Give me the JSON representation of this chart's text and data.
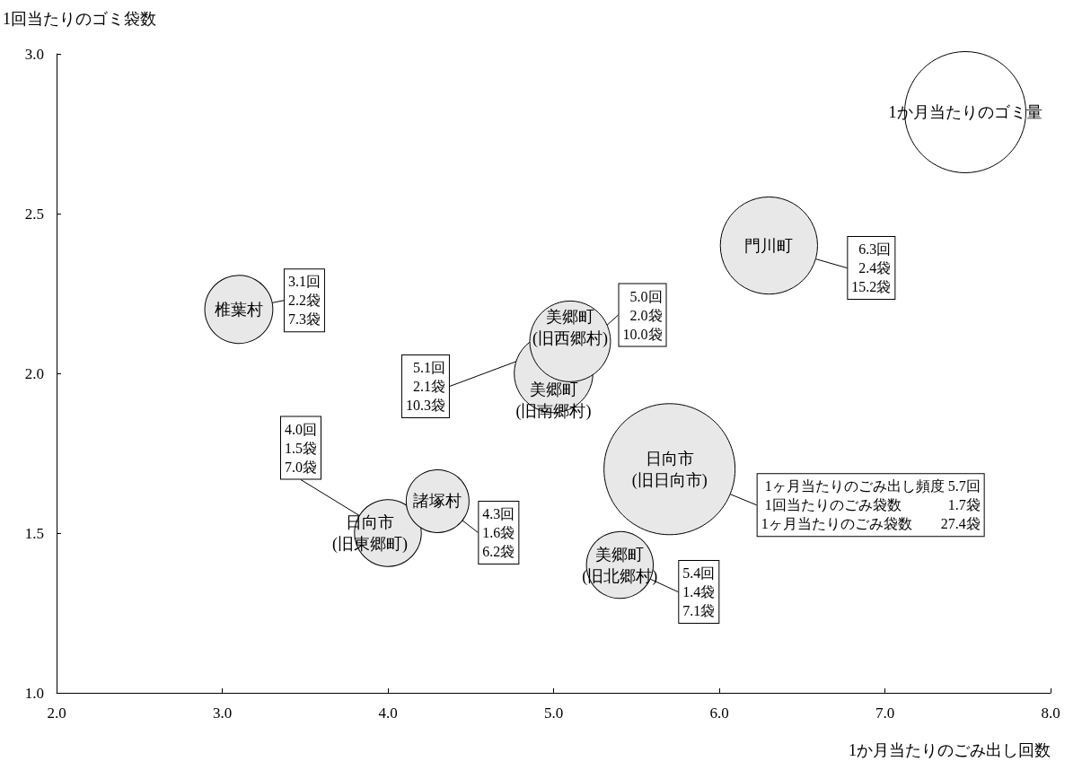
{
  "chart_data": {
    "type": "bubble",
    "xlabel": "1か月当たりのごみ出し回数",
    "ylabel": "1回当たりのゴミ袋数",
    "legend_title": "1か月当たりのゴミ量",
    "grid": false,
    "xlim": [
      2,
      8
    ],
    "xticks": [
      {
        "value": 2,
        "label": "2.0"
      },
      {
        "value": 3,
        "label": "3.0"
      },
      {
        "value": 4,
        "label": "4.0"
      },
      {
        "value": 5,
        "label": "5.0"
      },
      {
        "value": 6,
        "label": "6.0"
      },
      {
        "value": 7,
        "label": "7.0"
      },
      {
        "value": 8,
        "label": "8.0"
      }
    ],
    "ylim": [
      1,
      3
    ],
    "yticks": [
      {
        "value": 1,
        "label": "1.0"
      },
      {
        "value": 1.5,
        "label": "1.5"
      },
      {
        "value": 2,
        "label": "2.0"
      },
      {
        "value": 2.5,
        "label": "2.5"
      },
      {
        "value": 3,
        "label": "3.0"
      }
    ],
    "series": [
      {
        "color": "#e8e8e8",
        "x": [
          3.1,
          5.0,
          5.1,
          6.3,
          5.7,
          4.0,
          4.3,
          5.4
        ],
        "values": [
          2.2,
          2.0,
          2.1,
          2.4,
          1.7,
          1.5,
          1.6,
          1.4
        ],
        "sizes": [
          0.27,
          0.36,
          0.38,
          0.55,
          1,
          0.26,
          0.23,
          0.26
        ],
        "value_labels": [
          "3.1回\n2.2袋\n7.3袋",
          "5.0回\n2.0袋\n10.0袋",
          "5.1回\n2.1袋\n10.3袋",
          "6.3回\n2.4袋\n15.2袋",
          "1ヶ月当たりのごみ出し頻度 5.7回\n1回当たりのごみ袋数　　　 1.7袋\n1ヶ月当たりのごみ袋数　　27.4袋",
          "4.0回\n1.5袋\n7.0袋",
          "4.3回\n1.6袋\n6.2袋",
          "5.4回\n1.4袋\n7.1袋"
        ]
      }
    ],
    "annotations": [
      {
        "text": "椎葉村",
        "x": 3.1,
        "y": 2.2
      },
      {
        "text": "美郷町\n(旧南郷村)",
        "x": 5.0,
        "y": 2.0
      },
      {
        "text": "美郷町\n(旧西郷村)",
        "x": 5.1,
        "y": 2.1
      },
      {
        "text": "門川町",
        "x": 6.3,
        "y": 2.4
      },
      {
        "text": "日向市\n(旧日向市)",
        "x": 5.7,
        "y": 1.7
      },
      {
        "text": "日向市\n(旧東郷町)",
        "x": 4.0,
        "y": 1.5
      },
      {
        "text": "諸塚村",
        "x": 4.3,
        "y": 1.6
      },
      {
        "text": "美郷町\n(旧北郷村)",
        "x": 5.4,
        "y": 1.4
      }
    ]
  }
}
